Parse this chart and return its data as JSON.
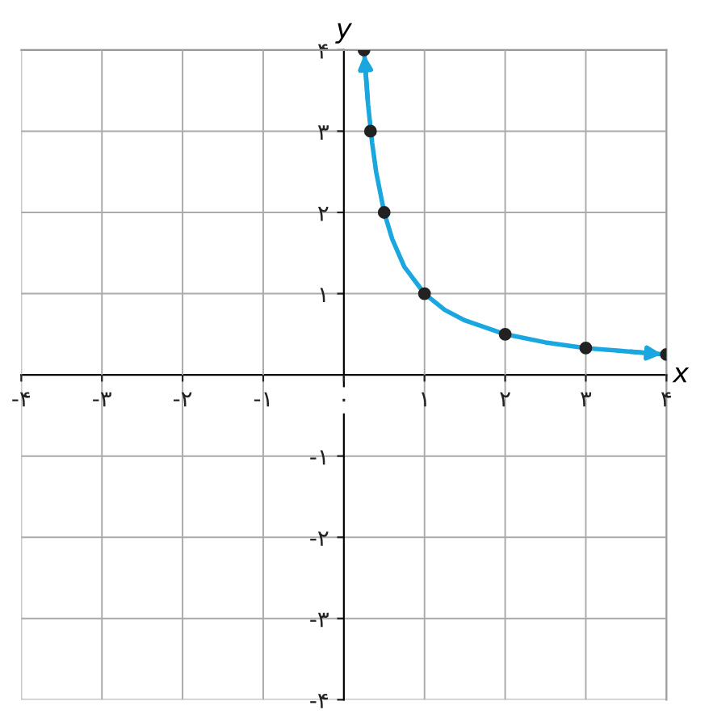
{
  "chart_data": {
    "type": "line",
    "xlabel": "x",
    "ylabel": "y",
    "xlim": [
      -4,
      4
    ],
    "ylim": [
      -4,
      4
    ],
    "xticks": [
      {
        "value": -4,
        "label": "-۴"
      },
      {
        "value": -3,
        "label": "-۳"
      },
      {
        "value": -2,
        "label": "-۲"
      },
      {
        "value": -1,
        "label": "-۱"
      },
      {
        "value": 0,
        "label": "۰"
      },
      {
        "value": 1,
        "label": "۱"
      },
      {
        "value": 2,
        "label": "۲"
      },
      {
        "value": 3,
        "label": "۳"
      },
      {
        "value": 4,
        "label": "۴"
      }
    ],
    "yticks": [
      {
        "value": -4,
        "label": "-۴"
      },
      {
        "value": -3,
        "label": "-۳"
      },
      {
        "value": -2,
        "label": "-۲"
      },
      {
        "value": -1,
        "label": "-۱"
      },
      {
        "value": 1,
        "label": "۱"
      },
      {
        "value": 2,
        "label": "۲"
      },
      {
        "value": 3,
        "label": "۳"
      },
      {
        "value": 4,
        "label": "۴"
      }
    ],
    "grid": true,
    "series": [
      {
        "color": "#1aa7df",
        "x": [
          0.25,
          0.3,
          0.35,
          0.4,
          0.5,
          0.6,
          0.75,
          1,
          1.25,
          1.5,
          2,
          2.5,
          3,
          3.5,
          4
        ],
        "values": [
          4,
          3.33,
          2.86,
          2.5,
          2,
          1.67,
          1.33,
          1,
          0.8,
          0.67,
          0.5,
          0.4,
          0.33,
          0.29,
          0.25
        ]
      },
      {
        "type": "scatter",
        "color": "#222222",
        "x": [
          0.25,
          0.33,
          0.5,
          1,
          2,
          3,
          4
        ],
        "values": [
          4,
          3,
          2,
          1,
          0.5,
          0.33,
          0.25
        ]
      }
    ]
  }
}
